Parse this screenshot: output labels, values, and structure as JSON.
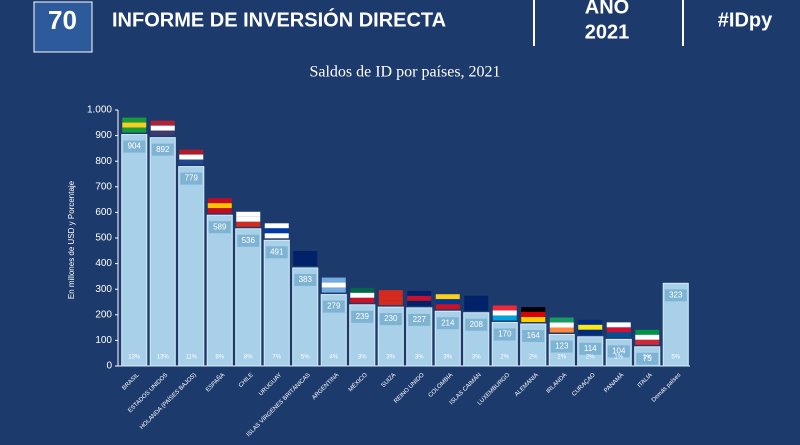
{
  "header": {
    "logo_text": "70",
    "title": "INFORME DE INVERSIÓN DIRECTA",
    "year_label": "AÑO",
    "year": "2021",
    "hashtag": "#IDpy"
  },
  "chart_data": {
    "type": "bar",
    "title": "Saldos de ID por países, 2021",
    "y_label": "En millones de USD y Porcentaje",
    "categories": [
      "BRASIL",
      "ESTADOS UNIDOS",
      "HOLANDA (PAÍSES BAJOS)",
      "ESPAÑA",
      "CHILE",
      "URUGUAY",
      "ISLAS VÍRGENES BRITÁNICAS",
      "ARGENTINA",
      "MÉXICO",
      "SUIZA",
      "REINO UNIDO",
      "COLOMBIA",
      "ISLAS CAIMÁN",
      "LUXEMBURGO",
      "ALEMANIA",
      "IRLANDA",
      "CURAÇAO",
      "PANAMÁ",
      "ITALIA",
      "Demás países"
    ],
    "values": [
      904,
      892,
      779,
      589,
      536,
      491,
      383,
      279,
      239,
      230,
      227,
      214,
      208,
      170,
      164,
      123,
      114,
      104,
      75,
      323
    ],
    "shares": [
      13,
      13,
      11,
      8,
      8,
      7,
      5,
      4,
      3,
      3,
      3,
      3,
      3,
      2,
      2,
      2,
      2,
      1,
      1,
      5
    ],
    "share_labels": [
      "13%",
      "13%",
      "11%",
      "8%",
      "8%",
      "7%",
      "5%",
      "4%",
      "3%",
      "3%",
      "3%",
      "3%",
      "3%",
      "2%",
      "2%",
      "2%",
      "2%",
      "1%",
      "1%",
      "5%"
    ],
    "color": "#a8d0e8",
    "ylim": [
      0,
      1000
    ],
    "yticks": [
      0,
      100,
      200,
      300,
      400,
      500,
      600,
      700,
      800,
      900,
      {
        "value": 1000,
        "label": "1.000"
      }
    ]
  }
}
